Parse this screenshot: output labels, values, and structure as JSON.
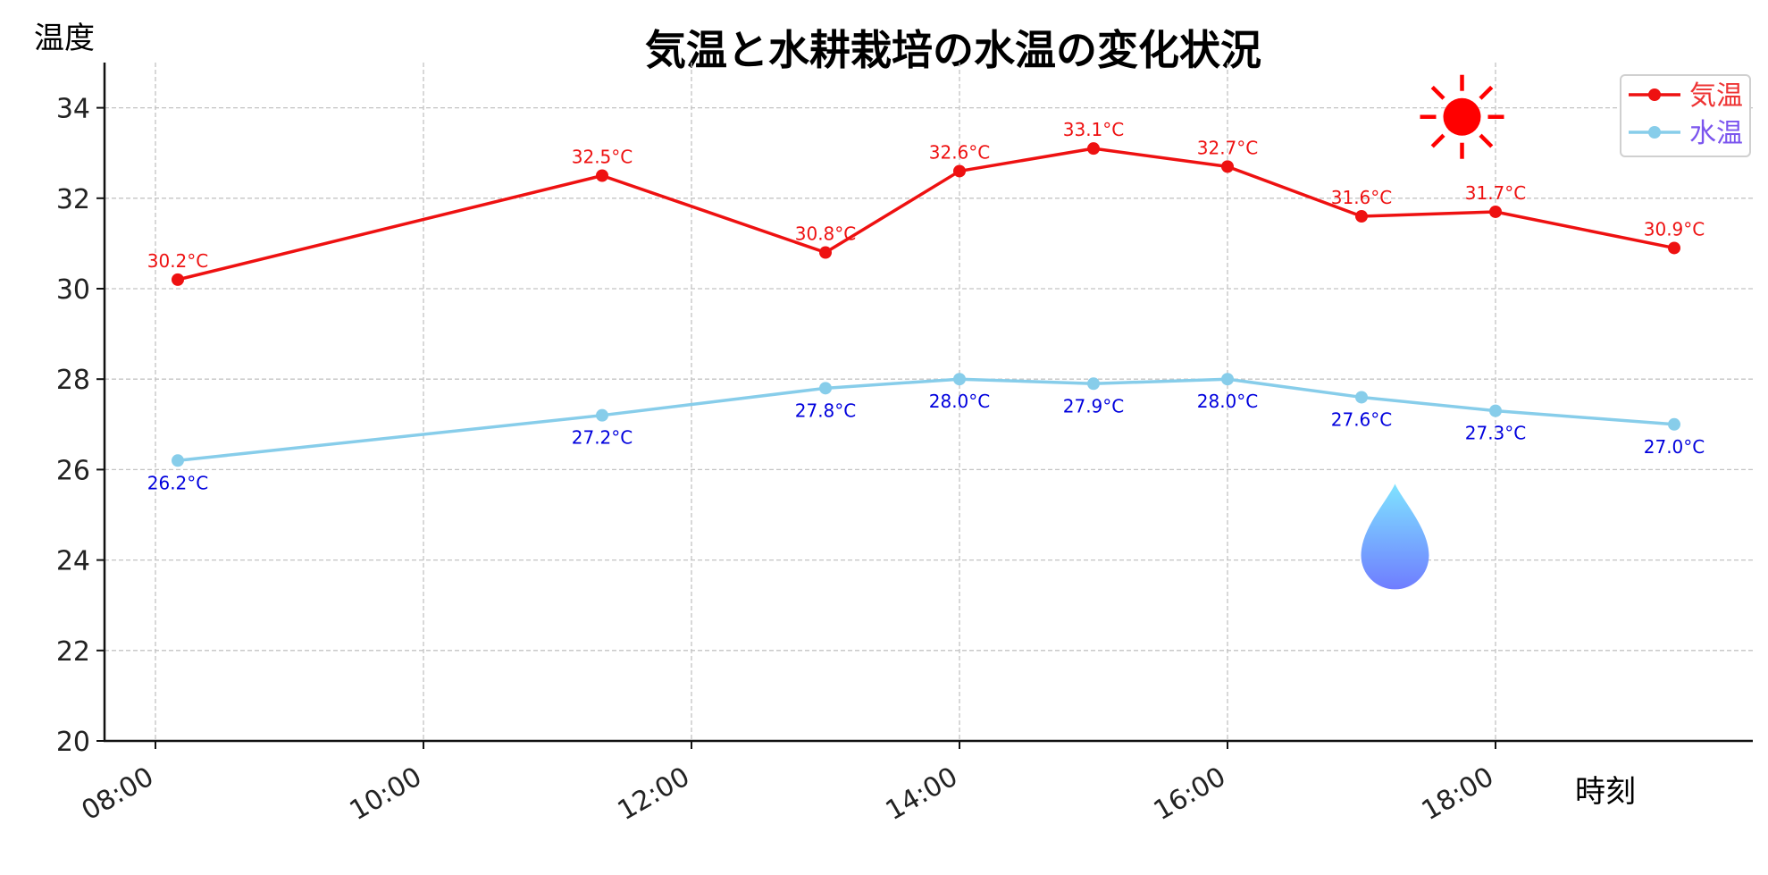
{
  "chart_data": {
    "type": "line",
    "title": "気温と水耕栽培の水温の変化状況",
    "xlabel": "時刻",
    "ylabel": "温度",
    "ylim": [
      20,
      35
    ],
    "yticks": [
      20,
      22,
      24,
      26,
      28,
      30,
      32,
      34
    ],
    "xlim": [
      "07:37",
      "19:57"
    ],
    "xticks": [
      "08:00",
      "10:00",
      "12:00",
      "14:00",
      "16:00",
      "18:00"
    ],
    "x": [
      "08:10",
      "11:20",
      "13:00",
      "14:00",
      "15:00",
      "16:00",
      "17:00",
      "18:00",
      "19:20"
    ],
    "grid": true,
    "legend_position": "top-right",
    "series": [
      {
        "name": "気温",
        "color": "#ee1111",
        "values": [
          30.2,
          32.5,
          30.8,
          32.6,
          33.1,
          32.7,
          31.6,
          31.7,
          30.9
        ],
        "labels": [
          "30.2°C",
          "32.5°C",
          "30.8°C",
          "32.6°C",
          "33.1°C",
          "32.7°C",
          "31.6°C",
          "31.7°C",
          "30.9°C"
        ],
        "label_position": "above",
        "label_color": "#ee1111",
        "legend_text_color": "#ee3333"
      },
      {
        "name": "水温",
        "color": "#87cdea",
        "values": [
          26.2,
          27.2,
          27.8,
          28.0,
          27.9,
          28.0,
          27.6,
          27.3,
          27.0
        ],
        "labels": [
          "26.2°C",
          "27.2°C",
          "27.8°C",
          "28.0°C",
          "27.9°C",
          "28.0°C",
          "27.6°C",
          "27.3°C",
          "27.0°C"
        ],
        "label_position": "below",
        "label_color": "#0000dd",
        "legend_text_color": "#7b55ee"
      }
    ],
    "decorations": [
      {
        "icon": "sun-icon",
        "color": "#ff0000",
        "x": "17:45",
        "y": 33.8
      },
      {
        "icon": "water-drop-icon",
        "color": "#66aaff",
        "x": "17:15",
        "y": 24.3
      }
    ]
  }
}
